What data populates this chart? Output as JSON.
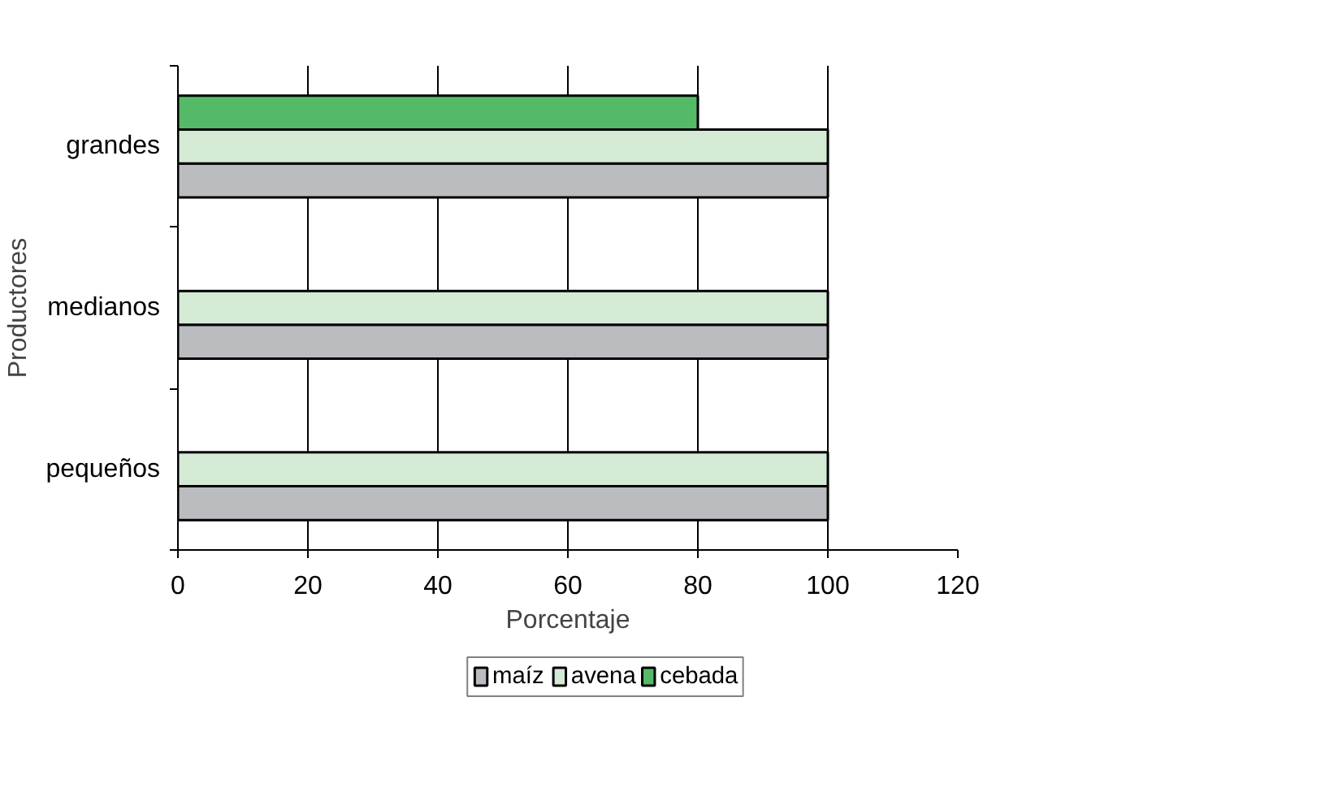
{
  "chart_data": {
    "type": "bar",
    "orientation": "horizontal",
    "xlabel": "Porcentaje",
    "ylabel": "Productores",
    "categories": [
      "grandes",
      "medianos",
      "pequeños"
    ],
    "series": [
      {
        "name": "maíz",
        "color": "#bbbcc0",
        "values": [
          100,
          100,
          100
        ]
      },
      {
        "name": "avena",
        "color": "#d4ead5",
        "values": [
          100,
          100,
          100
        ]
      },
      {
        "name": "cebada",
        "color": "#55ba67",
        "values": [
          80,
          null,
          null
        ]
      }
    ],
    "xlim": [
      0,
      120
    ],
    "xticks": [
      0,
      20,
      40,
      60,
      80,
      100,
      120
    ],
    "grid": "x",
    "legend": "bottom"
  }
}
